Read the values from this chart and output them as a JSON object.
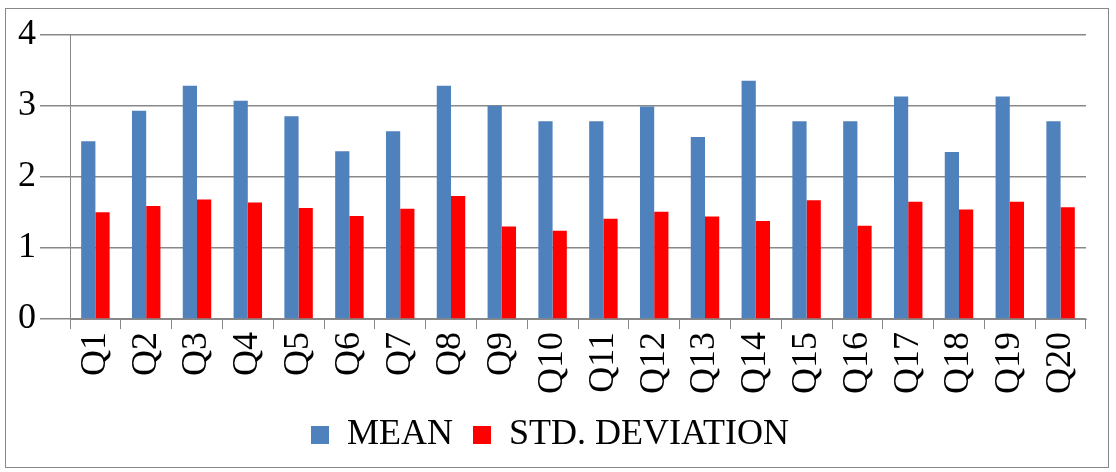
{
  "chart_data": {
    "type": "bar",
    "categories": [
      "Q1",
      "Q2",
      "Q3",
      "Q4",
      "Q5",
      "Q6",
      "Q7",
      "Q8",
      "Q9",
      "Q10",
      "Q11",
      "Q12",
      "Q13",
      "Q14",
      "Q15",
      "Q16",
      "Q17",
      "Q18",
      "Q19",
      "Q20"
    ],
    "series": [
      {
        "name": "MEAN",
        "color": "#4f81bd",
        "values": [
          2.5,
          2.93,
          3.28,
          3.07,
          2.85,
          2.36,
          2.64,
          3.28,
          3.0,
          2.78,
          2.78,
          2.99,
          2.56,
          3.35,
          2.78,
          2.78,
          3.13,
          2.35,
          3.13,
          2.78
        ]
      },
      {
        "name": "STD. DEVIATION",
        "color": "#ff0000",
        "values": [
          1.5,
          1.59,
          1.68,
          1.64,
          1.56,
          1.45,
          1.55,
          1.73,
          1.3,
          1.24,
          1.41,
          1.51,
          1.44,
          1.38,
          1.67,
          1.31,
          1.65,
          1.54,
          1.65,
          1.57
        ]
      }
    ],
    "ylim": [
      0,
      4
    ],
    "yticks": [
      0,
      1,
      2,
      3,
      4
    ],
    "grid": "y",
    "legend": "bottom"
  }
}
